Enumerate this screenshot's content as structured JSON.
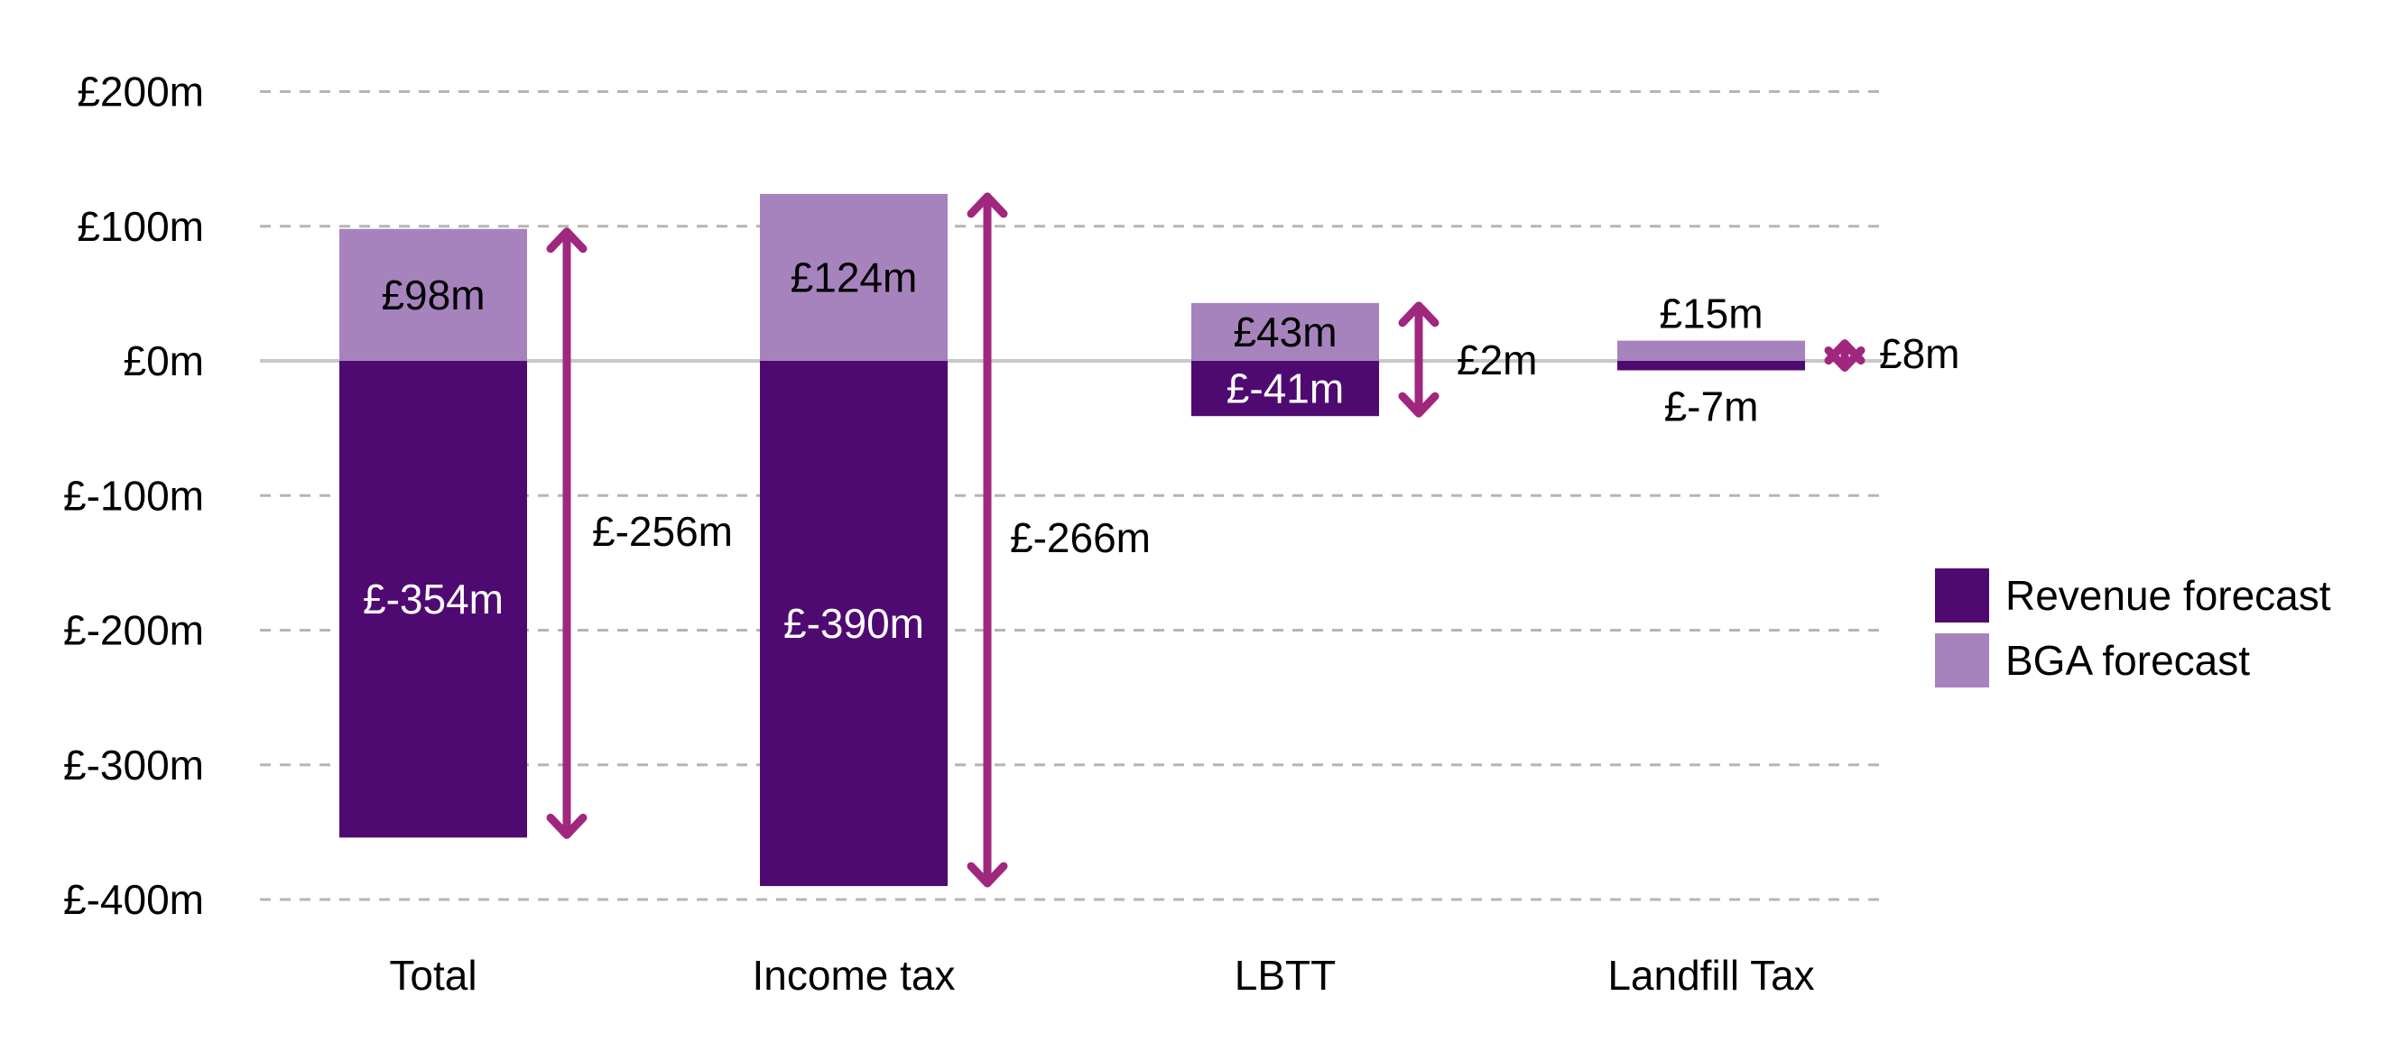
{
  "chart_data": {
    "type": "bar",
    "categories": [
      "Total",
      "Income tax",
      "LBTT",
      "Landfill Tax"
    ],
    "series": [
      {
        "name": "Revenue forecast",
        "values": [
          -354,
          -390,
          -41,
          -7
        ],
        "labels": [
          "£-354m",
          "£-390m",
          "£-41m",
          "£-7m"
        ]
      },
      {
        "name": "BGA forecast",
        "values": [
          98,
          124,
          43,
          15
        ],
        "labels": [
          "£98m",
          "£124m",
          "£43m",
          "£15m"
        ]
      }
    ],
    "differences": [
      {
        "category": "Total",
        "value": -256,
        "label": "£-256m"
      },
      {
        "category": "Income tax",
        "value": -266,
        "label": "£-266m"
      },
      {
        "category": "LBTT",
        "value": 2,
        "label": "£2m"
      },
      {
        "category": "Landfill Tax",
        "value": 8,
        "label": "£8m"
      }
    ],
    "yticks": [
      200,
      100,
      0,
      -100,
      -200,
      -300,
      -400
    ],
    "ytick_labels": [
      "£200m",
      "£100m",
      "£0m",
      "£-100m",
      "£-200m",
      "£-300m",
      "£-400m"
    ],
    "ylim": [
      -400,
      200
    ],
    "grid": true,
    "legend": "right",
    "title": "",
    "xlabel": "",
    "ylabel": ""
  },
  "colors": {
    "revenue": "#4f0a72",
    "bga": "#a783be",
    "arrow": "#a0277e",
    "grid": "#b5b5b5",
    "zero": "#c8c8c8"
  }
}
